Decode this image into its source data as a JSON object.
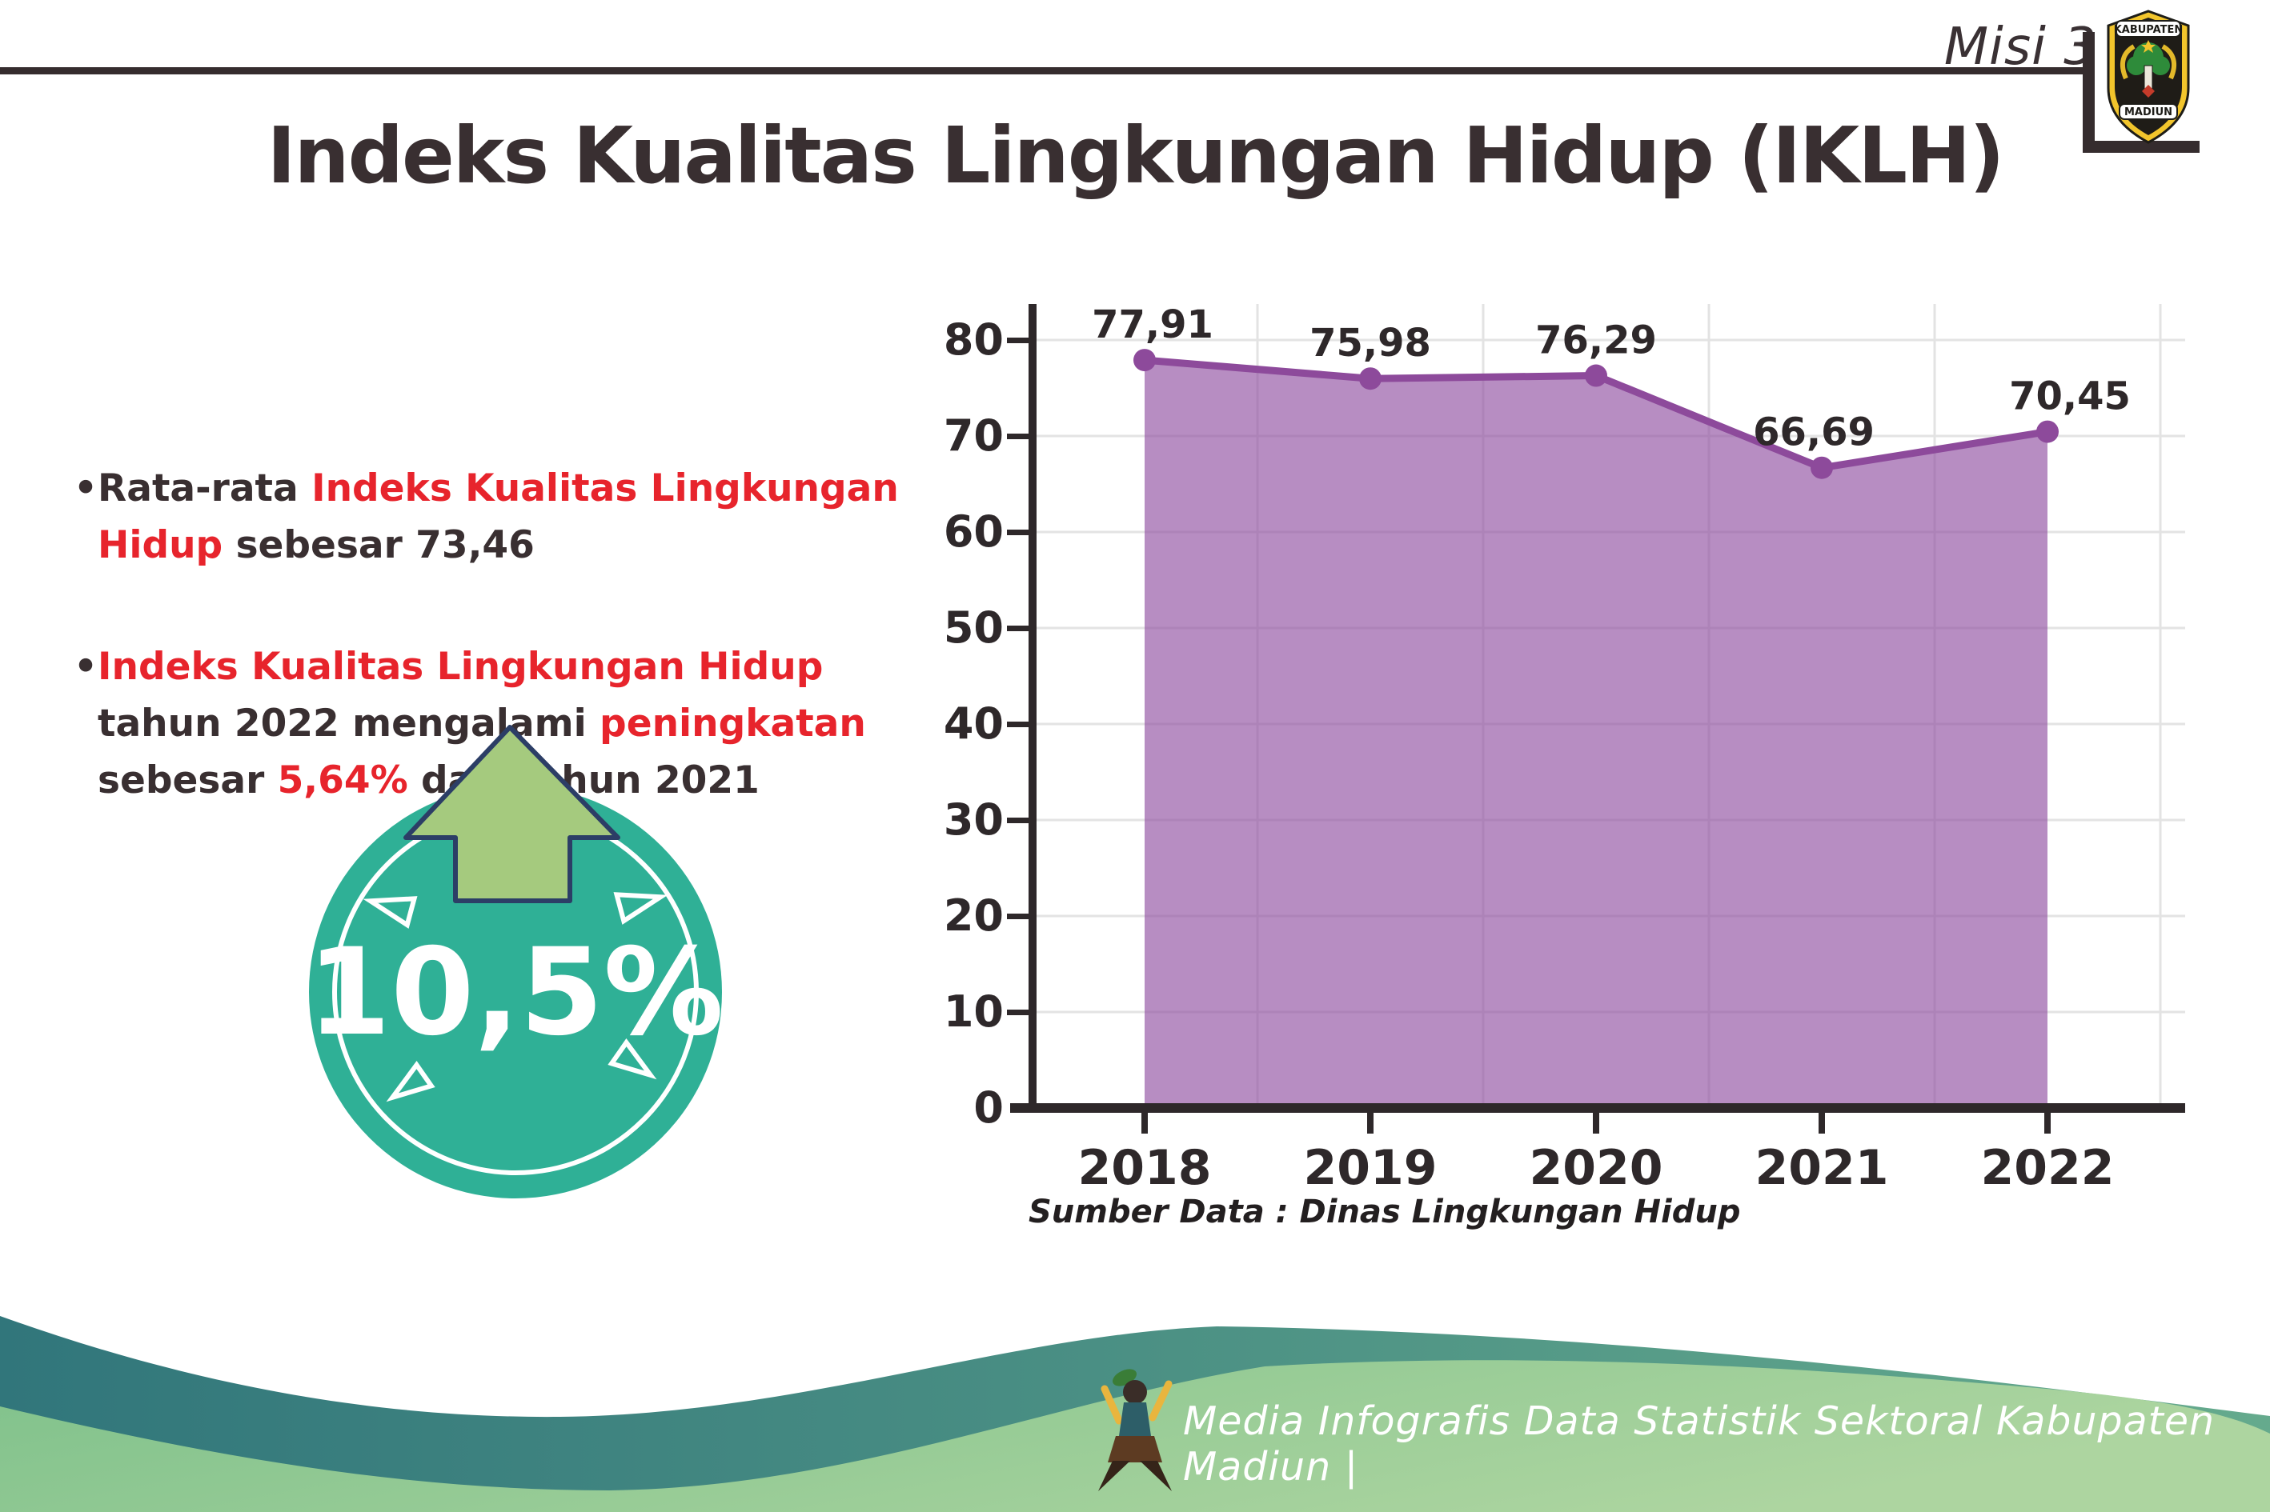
{
  "header": {
    "misi_label": "Misi 3",
    "title": "Indeks Kualitas Lingkungan Hidup (IKLH)",
    "logo_top": "KABUPATEN",
    "logo_bottom": "MADIUN"
  },
  "bullet_char": "•",
  "bullets": {
    "b1": {
      "s1": "Rata-rata ",
      "s2": "Indeks Kualitas Lingkungan Hidup",
      "s3": " sebesar 73,46"
    },
    "b2": {
      "s1": "Indeks Kualitas Lingkungan Hidup",
      "s2": " tahun 2022 mengalami ",
      "s3": "peningkatan",
      "s4": " sebesar ",
      "s5": "5,64%",
      "s6": " dari tahun 2021"
    }
  },
  "badge": {
    "value": "10,5%"
  },
  "chart_data": {
    "type": "area",
    "title": "",
    "categories": [
      "2018",
      "2019",
      "2020",
      "2021",
      "2022"
    ],
    "values": [
      77.91,
      75.98,
      76.29,
      66.69,
      70.45
    ],
    "value_labels": [
      "77,91",
      "75,98",
      "76,29",
      "66,69",
      "70,45"
    ],
    "xlabel": "",
    "ylabel": "",
    "ylim": [
      0,
      83
    ],
    "ytick_step": 10,
    "grid": true,
    "legend": "none"
  },
  "source_note": "Sumber Data : Dinas Lingkungan Hidup",
  "footer": {
    "caption": "Media Infografis Data Statistik Sektoral Kabupaten Madiun |"
  },
  "colors": {
    "text_dark": "#392f31",
    "accent_red": "#e7242c",
    "purple_line": "#8d4a9b",
    "purple_fill": "rgba(141,74,158,0.63)",
    "badge_teal": "#2fb096",
    "arrow_green": "#a5ca7e",
    "arrow_outline_navy": "#2c3e66",
    "footer_teal": "#31767b",
    "footer_green": "#7fc18b"
  }
}
